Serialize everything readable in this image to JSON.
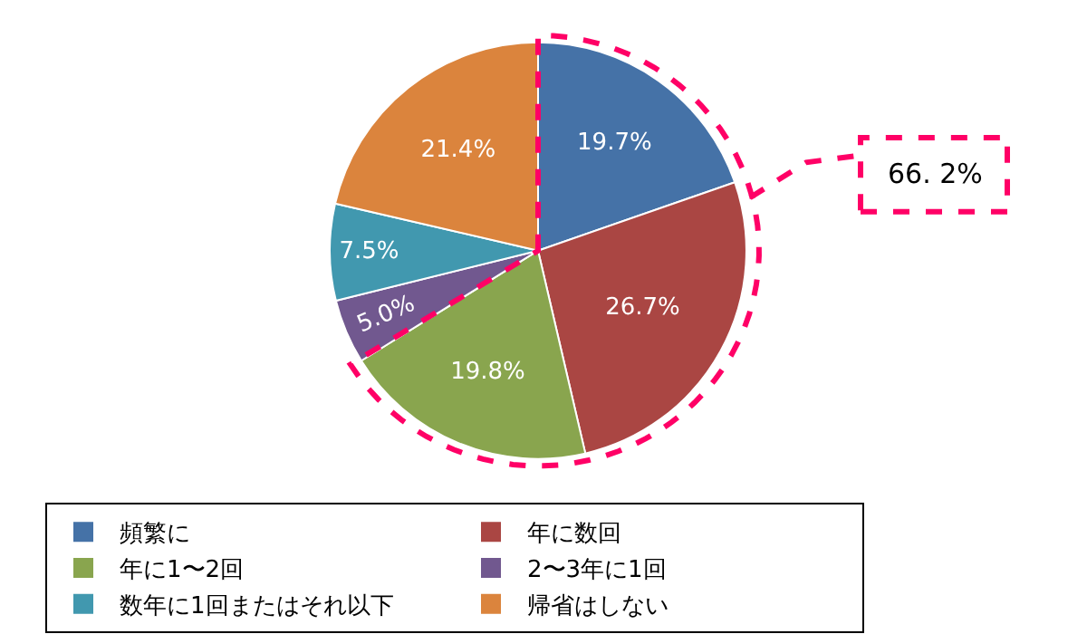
{
  "chart_data": {
    "type": "pie",
    "categories": [
      "頻繁に",
      "年に数回",
      "年に1〜2回",
      "2〜3年に1回",
      "数年に1回またはそれ以下",
      "帰省はしない"
    ],
    "values": [
      19.7,
      26.7,
      19.8,
      5.0,
      7.5,
      21.4
    ],
    "colors": [
      "#4572a7",
      "#aa4643",
      "#89a54e",
      "#71588f",
      "#4198af",
      "#db843d"
    ],
    "value_labels": [
      "19.7%",
      "26.7%",
      "19.8%",
      "5.0%",
      "7.5%",
      "21.4%"
    ],
    "annotations": [
      "66. 2%"
    ],
    "legend": "bottom"
  }
}
